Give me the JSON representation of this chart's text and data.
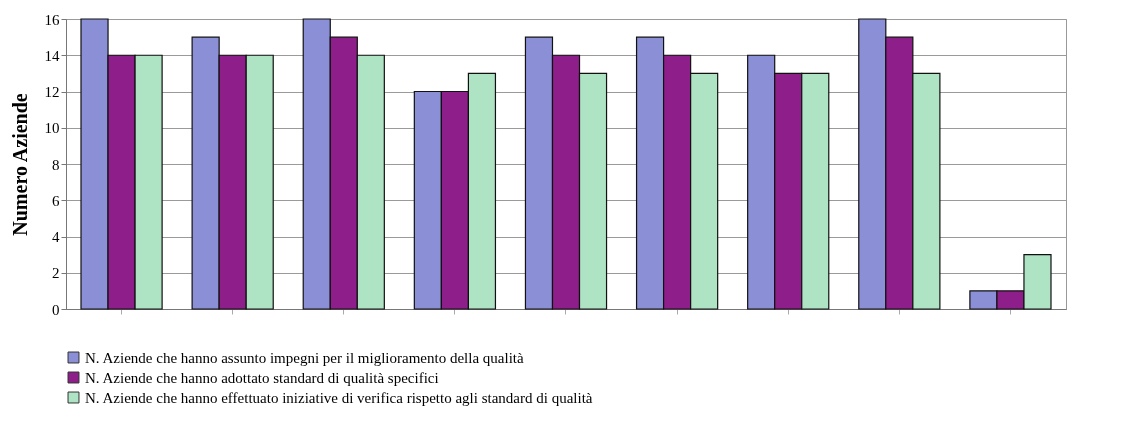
{
  "chart_data": {
    "type": "bar",
    "ylabel": "Numero Aziende",
    "categories": [
      null,
      null,
      null,
      null,
      null,
      null,
      null,
      null,
      null
    ],
    "series": [
      {
        "name": "N. Aziende che hanno assunto impegni per il miglioramento della qualità",
        "color": "#8a8fd6",
        "values": [
          16,
          15,
          16,
          12,
          15,
          15,
          14,
          16,
          1
        ]
      },
      {
        "name": "N. Aziende che hanno adottato standard di qualità specifici",
        "color": "#8e1f8a",
        "values": [
          14,
          14,
          15,
          12,
          14,
          14,
          13,
          15,
          1
        ]
      },
      {
        "name": "N. Aziende che hanno effettuato iniziative di verifica rispetto agli standard di qualità",
        "color": "#aee3c4",
        "values": [
          14,
          14,
          14,
          13,
          13,
          13,
          13,
          13,
          3
        ]
      }
    ],
    "ylim": [
      0,
      16
    ],
    "yticks": [
      0,
      2,
      4,
      6,
      8,
      10,
      12,
      14,
      16
    ],
    "grid": "y",
    "legend": "bottom"
  }
}
